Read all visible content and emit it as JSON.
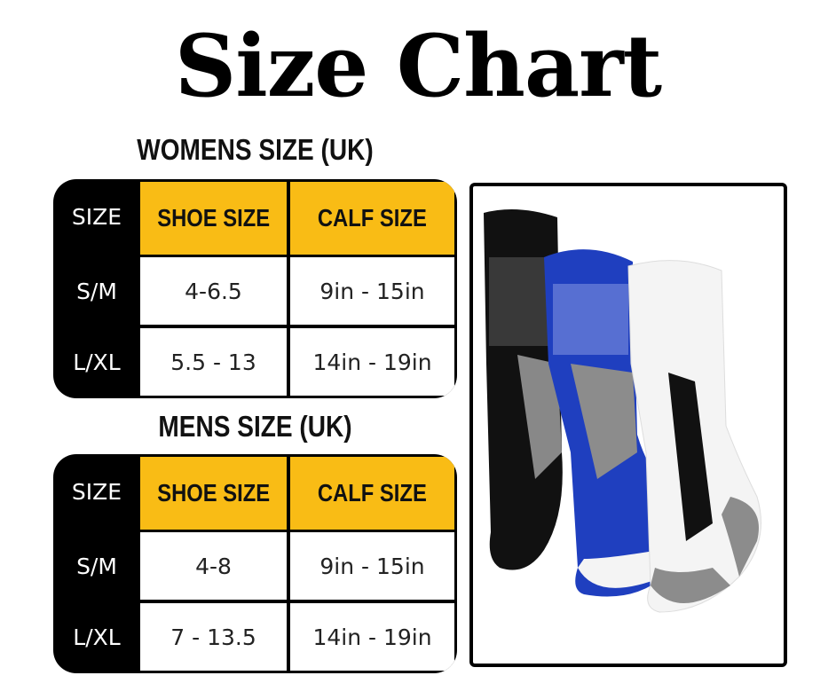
{
  "title": "Size Chart",
  "womens": {
    "heading": "WOMENS SIZE (UK)",
    "headers": [
      "SIZE",
      "SHOE SIZE",
      "CALF SIZE"
    ],
    "rows": [
      {
        "size": "S/M",
        "shoe": "4-6.5",
        "calf": "9in - 15in"
      },
      {
        "size": "L/XL",
        "shoe": "5.5 - 13",
        "calf": "14in - 19in"
      }
    ]
  },
  "mens": {
    "heading": "MENS SIZE (UK)",
    "headers": [
      "SIZE",
      "SHOE SIZE",
      "CALF SIZE"
    ],
    "rows": [
      {
        "size": "S/M",
        "shoe": "4-8",
        "calf": "9in - 15in"
      },
      {
        "size": "L/XL",
        "shoe": "7 - 13.5",
        "calf": "14in - 19in"
      }
    ]
  },
  "colors": {
    "header_yellow": "#F9BC15",
    "sock_blue": "#1F3FBF",
    "sock_black": "#111111",
    "sock_white": "#F4F4F4",
    "sock_gray": "#8C8C8C"
  }
}
